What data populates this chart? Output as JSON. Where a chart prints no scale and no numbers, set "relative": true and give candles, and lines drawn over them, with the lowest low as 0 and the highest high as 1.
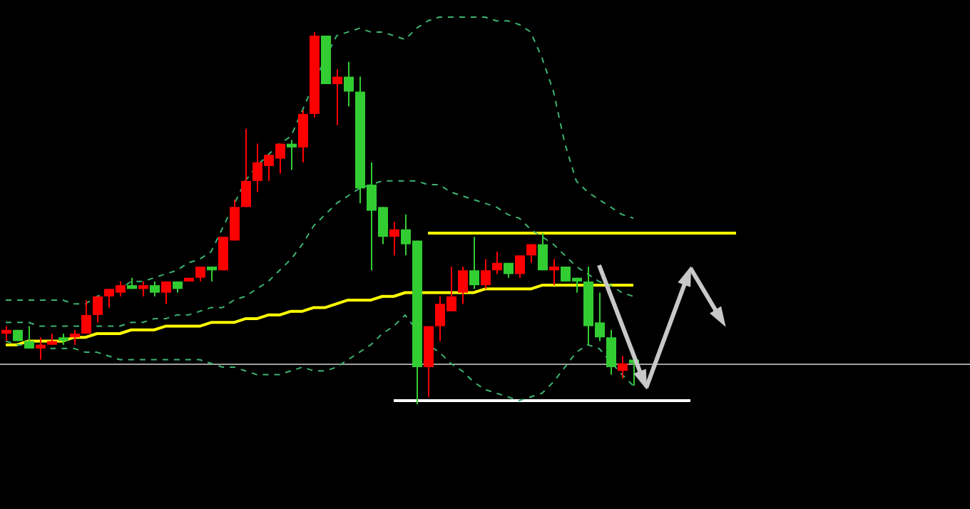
{
  "chart_data": {
    "type": "candlestick",
    "relative": true,
    "grid": false,
    "legend": false,
    "tick_labels": false,
    "marker": "none",
    "categories": [
      null,
      null,
      null,
      null,
      null,
      null,
      null,
      null,
      null,
      null,
      null,
      null,
      null,
      null,
      null,
      null,
      null,
      null,
      null,
      null,
      null,
      null,
      null,
      null,
      null,
      null,
      null,
      null,
      null,
      null,
      null,
      null,
      null,
      null,
      null,
      null,
      null,
      null,
      null,
      null,
      null,
      null,
      null,
      null,
      null,
      null,
      null,
      null,
      null,
      null,
      null,
      null,
      null,
      null,
      null,
      null,
      null,
      null,
      null,
      null,
      null,
      null,
      null,
      null,
      null,
      null,
      null,
      null,
      null,
      null,
      null,
      null,
      null,
      null,
      null,
      null,
      null,
      null,
      null,
      null,
      null,
      null,
      null,
      null,
      null
    ],
    "ohlc": [
      [
        0.19,
        0.21,
        0.17,
        0.2
      ],
      [
        0.2,
        0.2,
        0.17,
        0.17
      ],
      [
        0.17,
        0.21,
        0.15,
        0.15
      ],
      [
        0.15,
        0.18,
        0.12,
        0.16
      ],
      [
        0.16,
        0.19,
        0.16,
        0.17
      ],
      [
        0.18,
        0.19,
        0.16,
        0.17
      ],
      [
        0.18,
        0.2,
        0.16,
        0.19
      ],
      [
        0.19,
        0.28,
        0.19,
        0.24
      ],
      [
        0.24,
        0.29,
        0.22,
        0.29
      ],
      [
        0.29,
        0.31,
        0.26,
        0.31
      ],
      [
        0.3,
        0.33,
        0.29,
        0.32
      ],
      [
        0.32,
        0.34,
        0.31,
        0.31
      ],
      [
        0.31,
        0.33,
        0.29,
        0.32
      ],
      [
        0.32,
        0.33,
        0.29,
        0.3
      ],
      [
        0.3,
        0.33,
        0.27,
        0.33
      ],
      [
        0.33,
        0.33,
        0.3,
        0.31
      ],
      [
        0.33,
        0.34,
        0.33,
        0.34
      ],
      [
        0.34,
        0.37,
        0.33,
        0.37
      ],
      [
        0.37,
        0.37,
        0.33,
        0.36
      ],
      [
        0.36,
        0.45,
        0.36,
        0.45
      ],
      [
        0.44,
        0.55,
        0.44,
        0.53
      ],
      [
        0.53,
        0.74,
        0.53,
        0.6
      ],
      [
        0.6,
        0.7,
        0.57,
        0.65
      ],
      [
        0.64,
        0.67,
        0.6,
        0.67
      ],
      [
        0.66,
        0.7,
        0.62,
        0.7
      ],
      [
        0.7,
        0.71,
        0.63,
        0.69
      ],
      [
        0.69,
        0.79,
        0.65,
        0.78
      ],
      [
        0.78,
        1,
        0.77,
        0.99
      ],
      [
        0.99,
        0.99,
        0.86,
        0.86
      ],
      [
        0.86,
        0.9,
        0.75,
        0.88
      ],
      [
        0.88,
        0.92,
        0.8,
        0.84
      ],
      [
        0.84,
        0.88,
        0.54,
        0.58
      ],
      [
        0.59,
        0.65,
        0.36,
        0.52
      ],
      [
        0.53,
        0.53,
        0.43,
        0.45
      ],
      [
        0.45,
        0.49,
        0.4,
        0.47
      ],
      [
        0.47,
        0.51,
        0.4,
        0.43
      ],
      [
        0.44,
        0.44,
        0,
        0.1
      ],
      [
        0.1,
        0.21,
        0.02,
        0.21
      ],
      [
        0.21,
        0.29,
        0.17,
        0.27
      ],
      [
        0.25,
        0.37,
        0.25,
        0.29
      ],
      [
        0.3,
        0.37,
        0.27,
        0.36
      ],
      [
        0.36,
        0.45,
        0.31,
        0.32
      ],
      [
        0.32,
        0.39,
        0.31,
        0.36
      ],
      [
        0.36,
        0.41,
        0.35,
        0.38
      ],
      [
        0.38,
        0.38,
        0.34,
        0.35
      ],
      [
        0.35,
        0.4,
        0.34,
        0.4
      ],
      [
        0.4,
        0.43,
        0.38,
        0.43
      ],
      [
        0.43,
        0.46,
        0.36,
        0.36
      ],
      [
        0.36,
        0.39,
        0.32,
        0.37
      ],
      [
        0.37,
        0.37,
        0.33,
        0.33
      ],
      [
        0.34,
        0.34,
        0.3,
        0.33
      ],
      [
        0.33,
        0.37,
        0.16,
        0.21
      ],
      [
        0.22,
        0.3,
        0.17,
        0.18
      ],
      [
        0.18,
        0.2,
        0.08,
        0.1
      ],
      [
        0.09,
        0.13,
        0.07,
        0.11
      ],
      [
        0.12,
        0.12,
        0.05,
        0.11
      ],
      null,
      null,
      null,
      null,
      null,
      null,
      null,
      null,
      null,
      null,
      null,
      null,
      null,
      null,
      null,
      null,
      null,
      null,
      null,
      null,
      null,
      null,
      null,
      null,
      null,
      null,
      null,
      null,
      null
    ],
    "colors": [
      "#ff0000",
      "#32cd32",
      "#32cd32",
      "#ff0000",
      "#ff0000",
      "#32cd32",
      "#ff0000",
      "#ff0000",
      "#ff0000",
      "#ff0000",
      "#ff0000",
      "#32cd32",
      "#ff0000",
      "#32cd32",
      "#ff0000",
      "#32cd32",
      "#ff0000",
      "#ff0000",
      "#32cd32",
      "#ff0000",
      "#ff0000",
      "#ff0000",
      "#ff0000",
      "#ff0000",
      "#ff0000",
      "#32cd32",
      "#ff0000",
      "#ff0000",
      "#32cd32",
      "#ff0000",
      "#32cd32",
      "#32cd32",
      "#32cd32",
      "#32cd32",
      "#ff0000",
      "#32cd32",
      "#32cd32",
      "#ff0000",
      "#ff0000",
      "#ff0000",
      "#ff0000",
      "#32cd32",
      "#ff0000",
      "#ff0000",
      "#32cd32",
      "#ff0000",
      "#ff0000",
      "#32cd32",
      "#ff0000",
      "#32cd32",
      "#32cd32",
      "#32cd32",
      "#32cd32",
      "#32cd32",
      "#ff0000",
      "#32cd32",
      null,
      null,
      null,
      null,
      null,
      null,
      null,
      null,
      null,
      null,
      null,
      null,
      null,
      null,
      null,
      null,
      null,
      null,
      null,
      null,
      null,
      null,
      null,
      null,
      null,
      null,
      null,
      null,
      null
    ],
    "series": [
      {
        "type": "line",
        "color": "#3cb371",
        "line_style": "dashed",
        "values": [
          0.28,
          0.28,
          0.28,
          0.28,
          0.28,
          0.28,
          0.27,
          0.27,
          0.29,
          0.3,
          0.31,
          0.33,
          0.33,
          0.34,
          0.35,
          0.36,
          0.38,
          0.39,
          0.41,
          null,
          null,
          0.6,
          0.64,
          0.67,
          0.7,
          0.72,
          0.79,
          null,
          0.93,
          0.99,
          1.0,
          1.01,
          1.0,
          1.0,
          0.99,
          0.98,
          1.01,
          1.03,
          1.04,
          1.04,
          1.04,
          1.04,
          1.04,
          1.03,
          1.03,
          1.02,
          1.0,
          0.93,
          0.84,
          0.7,
          0.6,
          0.57,
          0.55,
          0.53,
          0.51,
          0.5,
          null,
          null,
          null,
          null,
          null,
          null,
          null,
          null,
          null,
          null,
          null,
          null,
          null,
          null,
          null,
          null,
          null,
          null,
          null,
          null,
          null,
          null,
          null,
          null,
          null,
          null,
          null,
          null,
          null
        ]
      },
      {
        "type": "line",
        "color": "#3cb371",
        "line_style": "dashed",
        "values": [
          0.22,
          0.22,
          0.22,
          0.21,
          0.21,
          0.21,
          0.21,
          0.21,
          0.21,
          0.21,
          0.21,
          0.22,
          0.22,
          0.23,
          0.23,
          0.24,
          0.24,
          0.25,
          0.26,
          0.26,
          0.28,
          0.29,
          0.31,
          0.33,
          0.36,
          0.39,
          0.43,
          0.48,
          0.51,
          0.54,
          0.56,
          0.58,
          0.59,
          0.6,
          0.6,
          0.6,
          0.6,
          0.59,
          0.59,
          0.57,
          0.56,
          0.55,
          0.54,
          0.53,
          0.51,
          0.5,
          0.47,
          0.45,
          0.43,
          0.4,
          0.37,
          0.35,
          0.33,
          0.32,
          0.3,
          0.29,
          null,
          null,
          null,
          null,
          null,
          null,
          null,
          null,
          null,
          null,
          null,
          null,
          null,
          null,
          null,
          null,
          null,
          null,
          null,
          null,
          null,
          null,
          null,
          null,
          null,
          null,
          null,
          null,
          null
        ]
      },
      {
        "type": "line",
        "color": "#3cb371",
        "line_style": "dashed",
        "values": [
          0.17,
          0.16,
          0.16,
          0.16,
          0.15,
          0.15,
          0.15,
          0.14,
          0.14,
          0.13,
          0.12,
          0.12,
          0.12,
          0.12,
          0.12,
          0.12,
          0.12,
          0.12,
          0.11,
          0.1,
          0.1,
          0.09,
          0.08,
          0.08,
          0.08,
          0.09,
          0.1,
          0.09,
          0.09,
          0.1,
          0.12,
          0.14,
          0.16,
          0.19,
          0.21,
          0.24,
          0.2,
          0.16,
          0.14,
          0.11,
          0.09,
          0.06,
          0.04,
          0.03,
          0.02,
          0.01,
          0.02,
          0.03,
          0.06,
          0.1,
          0.14,
          0.16,
          0.15,
          null,
          0.08,
          0.05,
          null,
          null,
          null,
          null,
          null,
          null,
          null,
          null,
          null,
          null,
          null,
          null,
          null,
          null,
          null,
          null,
          null,
          null,
          null,
          null,
          null,
          null,
          null,
          null,
          null,
          null,
          null,
          null,
          null
        ]
      },
      {
        "type": "line",
        "color": "#ffff00",
        "line_style": "solid",
        "values": [
          0.16,
          0.16,
          0.17,
          0.17,
          0.17,
          0.17,
          0.18,
          0.18,
          0.19,
          0.19,
          0.19,
          0.2,
          0.2,
          0.2,
          0.21,
          0.21,
          0.21,
          0.21,
          0.22,
          0.22,
          0.22,
          0.23,
          0.23,
          0.24,
          0.24,
          0.25,
          0.25,
          0.26,
          0.26,
          0.27,
          0.28,
          0.28,
          0.28,
          0.29,
          0.29,
          0.3,
          0.3,
          0.3,
          0.3,
          0.3,
          0.3,
          0.3,
          0.31,
          0.31,
          0.31,
          0.31,
          0.31,
          0.32,
          0.32,
          0.32,
          0.32,
          0.32,
          0.32,
          0.32,
          0.32,
          0.32,
          null,
          null,
          null,
          null,
          null,
          null,
          null,
          null,
          null,
          null,
          null,
          null,
          null,
          null,
          null,
          null,
          null,
          null,
          null,
          null,
          null,
          null,
          null,
          null,
          null,
          null,
          null,
          null,
          null
        ]
      },
      {
        "type": "line",
        "color": "#ffff00",
        "line_style": "solid",
        "values": [
          null,
          null,
          null,
          null,
          null,
          null,
          null,
          null,
          null,
          null,
          null,
          null,
          null,
          null,
          null,
          null,
          null,
          null,
          null,
          null,
          null,
          null,
          null,
          null,
          null,
          null,
          null,
          null,
          null,
          null,
          null,
          null,
          null,
          null,
          null,
          null,
          null,
          0.46,
          0.46,
          0.46,
          0.46,
          0.46,
          0.46,
          0.46,
          0.46,
          0.46,
          0.46,
          0.46,
          0.46,
          0.46,
          0.46,
          0.46,
          0.46,
          0.46,
          0.46,
          0.46,
          0.46,
          0.46,
          0.46,
          0.46,
          0.46,
          0.46,
          0.46,
          0.46,
          0.46,
          null,
          null,
          null,
          null,
          null,
          null,
          null,
          null,
          null,
          null,
          null,
          null,
          null,
          null,
          null,
          null,
          null,
          null,
          null,
          null
        ]
      },
      {
        "type": "line",
        "color": "#ffffff",
        "line_style": "solid",
        "values": [
          null,
          null,
          null,
          null,
          null,
          null,
          null,
          null,
          null,
          null,
          null,
          null,
          null,
          null,
          null,
          null,
          null,
          null,
          null,
          null,
          null,
          null,
          null,
          null,
          null,
          null,
          null,
          null,
          null,
          null,
          null,
          null,
          null,
          null,
          0.01,
          0.01,
          0.01,
          0.01,
          0.01,
          0.01,
          0.01,
          0.01,
          0.01,
          0.01,
          0.01,
          0.01,
          0.01,
          0.01,
          0.01,
          0.01,
          0.01,
          0.01,
          0.01,
          0.01,
          0.01,
          0.01,
          0.01,
          0.01,
          0.01,
          0.01,
          0.01,
          null,
          null,
          null,
          null,
          null,
          null,
          null,
          null,
          null,
          null,
          null,
          null,
          null,
          null,
          null,
          null,
          null,
          null,
          null,
          null,
          null,
          null,
          null,
          null
        ]
      }
    ],
    "ref_lines": [
      {
        "axis": "y",
        "value": 0.11,
        "color": "#a0a0a0"
      }
    ]
  }
}
